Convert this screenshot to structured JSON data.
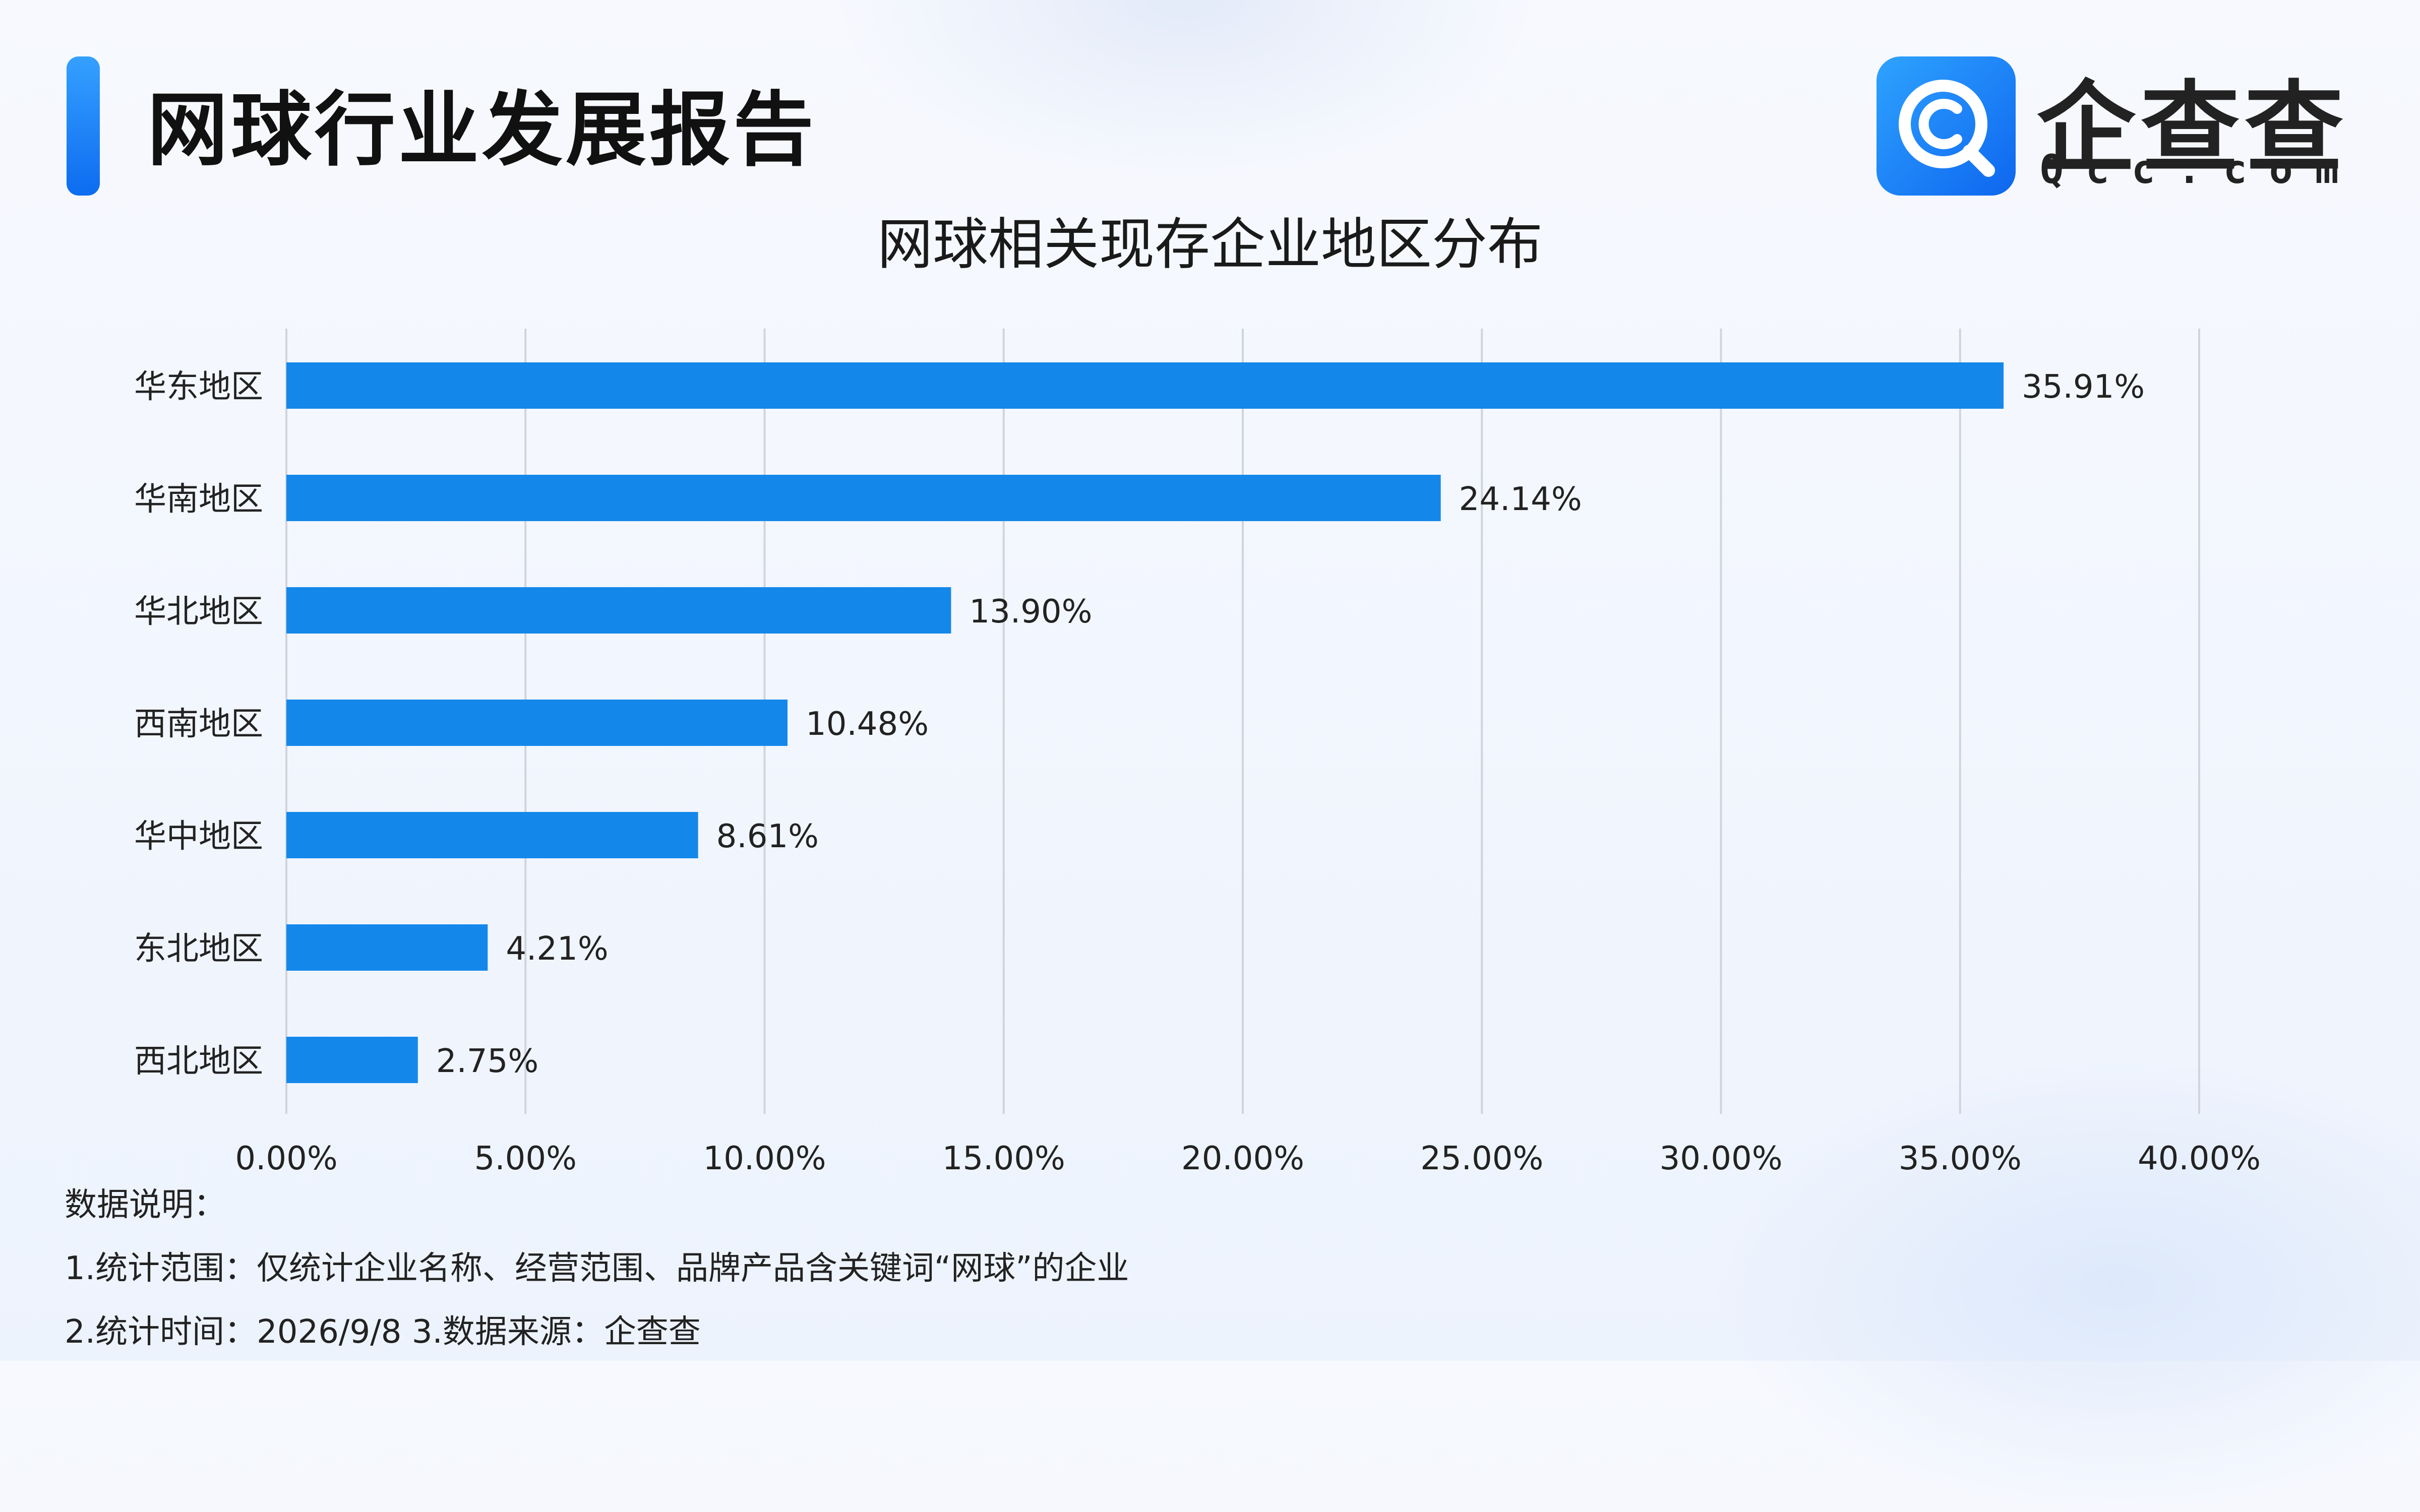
{
  "header": {
    "title": "网球行业发展报告"
  },
  "logo": {
    "name": "企查查",
    "sub": "Qcc.com",
    "icon": "qcc-logo-icon"
  },
  "colors": {
    "bar": "#1488ea",
    "accent": "#1a7ff5",
    "grid": "#d0d4dc"
  },
  "chart_data": {
    "type": "bar",
    "orientation": "horizontal",
    "title": "网球相关现存企业地区分布",
    "categories": [
      "华东地区",
      "华南地区",
      "华北地区",
      "西南地区",
      "华中地区",
      "东北地区",
      "西北地区"
    ],
    "values": [
      35.91,
      24.14,
      13.9,
      10.48,
      8.61,
      4.21,
      2.75
    ],
    "value_labels": [
      "35.91%",
      "24.14%",
      "13.90%",
      "10.48%",
      "8.61%",
      "4.21%",
      "2.75%"
    ],
    "xlim": [
      0,
      40
    ],
    "x_ticks": [
      "0.00%",
      "5.00%",
      "10.00%",
      "15.00%",
      "20.00%",
      "25.00%",
      "30.00%",
      "35.00%",
      "40.00%"
    ],
    "grid": "vertical",
    "legend": "none"
  },
  "notes": {
    "heading": "数据说明：",
    "line1": "1.统计范围：仅统计企业名称、经营范围、品牌产品含关键词“网球”的企业",
    "line2": "2.统计时间：2026/9/8  3.数据来源：企查查"
  }
}
